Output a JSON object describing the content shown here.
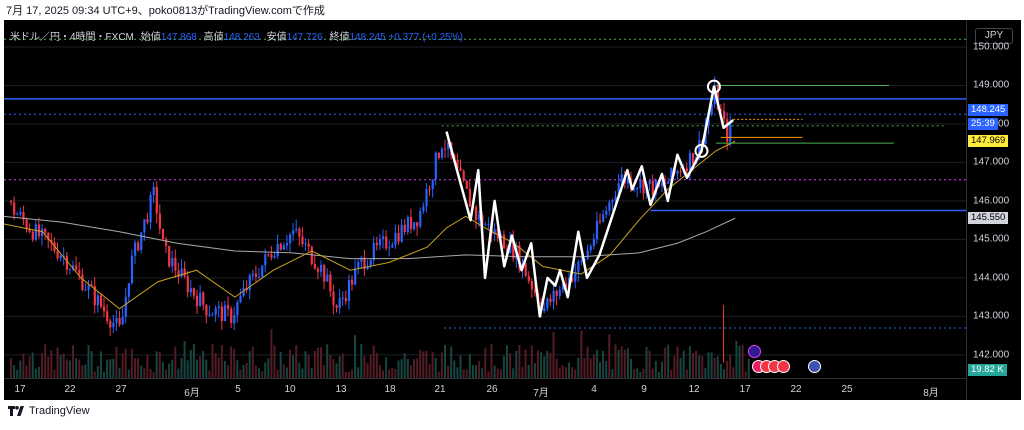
{
  "caption": "7月 17, 2025 09:34 UTC+9、poko0813がTradingView.comで作成",
  "legend": {
    "symbol": "米ドル／円・4時間・FXCM",
    "open_label": "始値",
    "open": "147.868",
    "high_label": "高値",
    "high": "148.263",
    "low_label": "安値",
    "low": "147.726",
    "close_label": "終値",
    "close": "148.245",
    "change": "+0.377 (+0.25%)"
  },
  "currency": "JPY",
  "footer": {
    "brand": "TradingView"
  },
  "colors": {
    "up": "#2962ff",
    "down": "#f23645",
    "zigzag": "#ffffff",
    "ma_fast": "#c8a21e",
    "ma_slow": "#a9a9a9",
    "level_blue": "#2962ff",
    "level_green": "#4caf50",
    "level_orange": "#ff9800",
    "level_magenta": "#e040fb"
  },
  "chart_data": {
    "type": "candlestick",
    "title": "米ドル／円・4時間・FXCM",
    "ylim": [
      141.4,
      150.7
    ],
    "price_ticks": [
      "150.000",
      "149.000",
      "148.000",
      "147.000",
      "146.000",
      "145.000",
      "144.000",
      "143.000",
      "142.000"
    ],
    "time_ticks": [
      "17",
      "22",
      "27",
      "6月",
      "5",
      "10",
      "13",
      "18",
      "21",
      "26",
      "7月",
      "4",
      "9",
      "12",
      "17",
      "22",
      "25",
      "8月"
    ],
    "badges": {
      "last_price": "148.245",
      "countdown": "25:39",
      "orange_level": "147.969",
      "support_level": "145.550",
      "volume": "19.82 K"
    },
    "horizontal_levels": [
      {
        "price": 150.2,
        "color": "level_green",
        "style": "dotted"
      },
      {
        "price": 148.65,
        "color": "level_blue",
        "style": "solid"
      },
      {
        "price": 148.25,
        "color": "level_blue",
        "style": "dotted"
      },
      {
        "price": 146.55,
        "color": "level_magenta",
        "style": "dotted"
      },
      {
        "price": 142.7,
        "color": "level_blue",
        "style": "dotted"
      }
    ],
    "zigzag": [
      [
        0.46,
        147.8
      ],
      [
        0.485,
        145.5
      ],
      [
        0.493,
        146.8
      ],
      [
        0.5,
        144.0
      ],
      [
        0.51,
        146.0
      ],
      [
        0.52,
        144.3
      ],
      [
        0.528,
        145.1
      ],
      [
        0.538,
        144.2
      ],
      [
        0.548,
        144.9
      ],
      [
        0.557,
        143.0
      ],
      [
        0.565,
        144.0
      ],
      [
        0.573,
        143.8
      ],
      [
        0.578,
        144.2
      ],
      [
        0.586,
        143.5
      ],
      [
        0.597,
        145.2
      ],
      [
        0.606,
        144.0
      ],
      [
        0.619,
        144.6
      ],
      [
        0.648,
        146.8
      ],
      [
        0.653,
        146.3
      ],
      [
        0.663,
        146.9
      ],
      [
        0.672,
        145.9
      ],
      [
        0.684,
        146.7
      ],
      [
        0.69,
        146.0
      ],
      [
        0.7,
        147.2
      ],
      [
        0.71,
        146.6
      ],
      [
        0.725,
        147.3
      ],
      [
        0.738,
        148.97
      ],
      [
        0.748,
        147.9
      ],
      [
        0.758,
        148.1
      ]
    ],
    "ma_fast": [
      [
        0.0,
        145.4
      ],
      [
        0.04,
        145.2
      ],
      [
        0.08,
        144.0
      ],
      [
        0.12,
        143.2
      ],
      [
        0.16,
        143.9
      ],
      [
        0.2,
        144.2
      ],
      [
        0.24,
        143.5
      ],
      [
        0.28,
        144.2
      ],
      [
        0.32,
        144.7
      ],
      [
        0.36,
        144.2
      ],
      [
        0.4,
        144.4
      ],
      [
        0.44,
        144.8
      ],
      [
        0.46,
        145.3
      ],
      [
        0.48,
        145.6
      ],
      [
        0.5,
        145.3
      ],
      [
        0.53,
        144.9
      ],
      [
        0.56,
        144.3
      ],
      [
        0.6,
        144.1
      ],
      [
        0.63,
        144.6
      ],
      [
        0.66,
        145.5
      ],
      [
        0.69,
        146.3
      ],
      [
        0.72,
        146.9
      ],
      [
        0.74,
        147.3
      ],
      [
        0.76,
        147.55
      ]
    ],
    "ma_slow": [
      [
        0.0,
        145.6
      ],
      [
        0.06,
        145.45
      ],
      [
        0.12,
        145.2
      ],
      [
        0.18,
        144.9
      ],
      [
        0.24,
        144.7
      ],
      [
        0.3,
        144.65
      ],
      [
        0.36,
        144.5
      ],
      [
        0.42,
        144.5
      ],
      [
        0.48,
        144.6
      ],
      [
        0.54,
        144.55
      ],
      [
        0.6,
        144.55
      ],
      [
        0.66,
        144.65
      ],
      [
        0.7,
        144.9
      ],
      [
        0.73,
        145.2
      ],
      [
        0.76,
        145.55
      ]
    ]
  }
}
